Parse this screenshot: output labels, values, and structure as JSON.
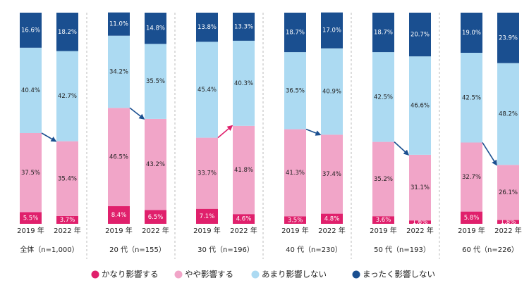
{
  "chart_data": {
    "type": "bar",
    "stacked": true,
    "groups": [
      "全体（n=1,000）",
      "20 代（n=155）",
      "30 代（n=196）",
      "40 代（n=230）",
      "50 代（n=193）",
      "60 代（n=226）"
    ],
    "categories": [
      "2019 年",
      "2022 年",
      "2019 年",
      "2022 年",
      "2019 年",
      "2022 年",
      "2019 年",
      "2022 年",
      "2019 年",
      "2022 年",
      "2019 年",
      "2022 年"
    ],
    "ylim": [
      0,
      100
    ],
    "series": [
      {
        "name": "かなり影響する",
        "color": "#e0206c",
        "values": [
          5.5,
          3.7,
          8.4,
          6.5,
          7.1,
          4.6,
          3.5,
          4.8,
          3.6,
          1.6,
          5.8,
          1.8
        ],
        "value_labels": [
          "5.5%",
          "3.7%",
          "8.4%",
          "6.5%",
          "7.1%",
          "4.6%",
          "3.5%",
          "4.8%",
          "3.6%",
          "1.6%",
          "5.8%",
          "1.8%"
        ]
      },
      {
        "name": "やや影響する",
        "color": "#f1a5c8",
        "values": [
          37.5,
          35.4,
          46.5,
          43.2,
          33.7,
          41.8,
          41.3,
          37.4,
          35.2,
          31.1,
          32.7,
          26.1
        ],
        "value_labels": [
          "37.5%",
          "35.4%",
          "46.5%",
          "43.2%",
          "33.7%",
          "41.8%",
          "41.3%",
          "37.4%",
          "35.2%",
          "31.1%",
          "32.7%",
          "26.1%"
        ]
      },
      {
        "name": "あまり影響しない",
        "color": "#acdaf2",
        "values": [
          40.4,
          42.7,
          34.2,
          35.5,
          45.4,
          40.3,
          36.5,
          40.9,
          42.5,
          46.6,
          42.5,
          48.2
        ],
        "value_labels": [
          "40.4%",
          "42.7%",
          "34.2%",
          "35.5%",
          "45.4%",
          "40.3%",
          "36.5%",
          "40.9%",
          "42.5%",
          "46.6%",
          "42.5%",
          "48.2%"
        ]
      },
      {
        "name": "まったく影響しない",
        "color": "#1a4f90",
        "values": [
          16.6,
          18.2,
          11.0,
          14.8,
          13.8,
          13.3,
          18.7,
          17.0,
          18.7,
          20.7,
          19.0,
          23.9
        ],
        "value_labels": [
          "16.6%",
          "18.2%",
          "11.0%",
          "14.8%",
          "13.8%",
          "13.3%",
          "18.7%",
          "17.0%",
          "18.7%",
          "20.7%",
          "19.0%",
          "23.9%"
        ]
      }
    ]
  }
}
